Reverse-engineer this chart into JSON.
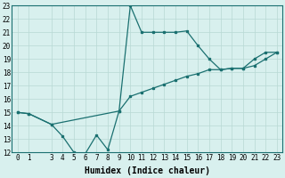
{
  "xlabel": "Humidex (Indice chaleur)",
  "xlim": [
    -0.5,
    23.5
  ],
  "ylim": [
    12,
    23
  ],
  "yticks": [
    12,
    13,
    14,
    15,
    16,
    17,
    18,
    19,
    20,
    21,
    22,
    23
  ],
  "xticks": [
    0,
    1,
    3,
    4,
    5,
    6,
    7,
    8,
    9,
    10,
    11,
    12,
    13,
    14,
    15,
    16,
    17,
    18,
    19,
    20,
    21,
    22,
    23
  ],
  "line1_x": [
    0,
    1,
    3,
    4,
    5,
    6,
    7,
    8,
    9,
    10,
    11,
    12,
    13,
    14,
    15,
    16,
    17,
    18,
    19,
    20,
    21,
    22,
    23
  ],
  "line1_y": [
    15.0,
    14.9,
    14.1,
    13.2,
    12.0,
    11.9,
    13.3,
    12.2,
    15.1,
    23.0,
    21.0,
    21.0,
    21.0,
    21.0,
    21.1,
    20.0,
    19.0,
    18.2,
    18.3,
    18.3,
    19.0,
    19.5,
    19.5
  ],
  "line2_x": [
    0,
    1,
    3,
    9,
    10,
    11,
    12,
    13,
    14,
    15,
    16,
    17,
    18,
    19,
    20,
    21,
    22,
    23
  ],
  "line2_y": [
    15.0,
    14.9,
    14.1,
    15.1,
    16.2,
    16.5,
    16.8,
    17.1,
    17.4,
    17.7,
    17.9,
    18.2,
    18.2,
    18.3,
    18.3,
    18.5,
    19.0,
    19.5
  ],
  "line_color": "#1a7070",
  "bg_color": "#d8f0ee",
  "grid_color": "#b8d8d4",
  "tick_fontsize": 5.5,
  "xlabel_fontsize": 7
}
